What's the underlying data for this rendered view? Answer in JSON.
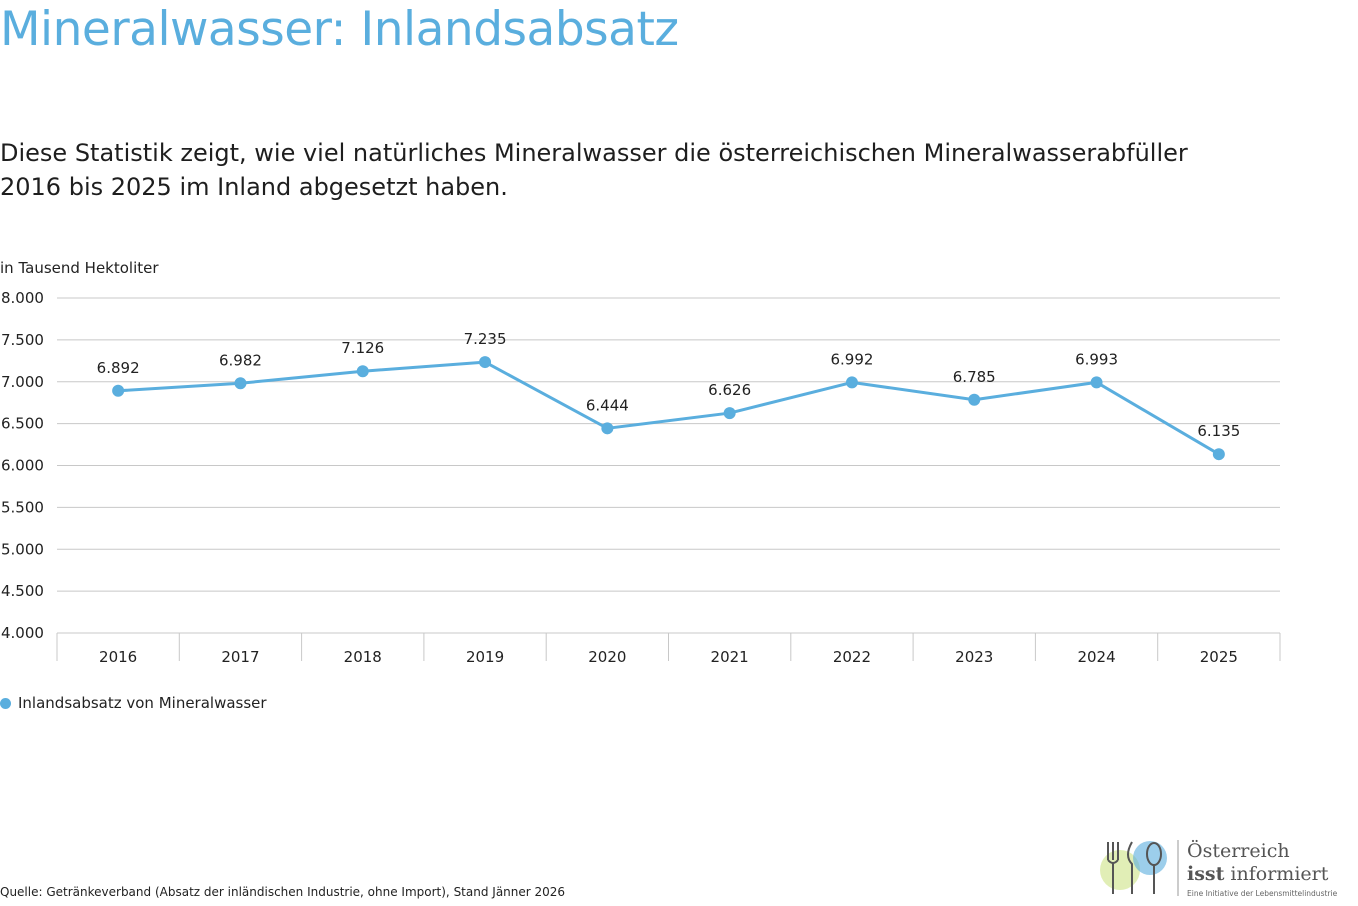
{
  "title": "Mineralwasser: Inlandsabsatz",
  "subtitle": "Diese Statistik zeigt, wie viel natürliches Mineralwasser die österreichischen Mineralwasserabfüller 2016 bis 2025 im Inland abgesetzt haben.",
  "source": "Quelle: Getränkeverband (Absatz der inländischen Industrie, ohne Import),  Stand Jänner 2026",
  "logo": {
    "line1": "Österreich",
    "line2_bold": "isst",
    "line2_rest": " informiert",
    "line3": "Eine Initiative der Lebensmittelindustrie"
  },
  "colors": {
    "accent": "#5aaede",
    "grid": "#c8c8c8"
  },
  "chart_data": {
    "type": "line",
    "ylabel": "in Tausend Hektoliter",
    "categories": [
      "2016",
      "2017",
      "2018",
      "2019",
      "2020",
      "2021",
      "2022",
      "2023",
      "2024",
      "2025"
    ],
    "series": [
      {
        "name": "Inlandsabsatz von Mineralwasser",
        "values": [
          6892,
          6982,
          7126,
          7235,
          6444,
          6626,
          6992,
          6785,
          6993,
          6135
        ],
        "labels": [
          "6.892",
          "6.982",
          "7.126",
          "7.235",
          "6.444",
          "6.626",
          "6.992",
          "6.785",
          "6.993",
          "6.135"
        ]
      }
    ],
    "ylim": [
      4000,
      8000
    ],
    "yticks": [
      4000,
      4500,
      5000,
      5500,
      6000,
      6500,
      7000,
      7500,
      8000
    ],
    "ytick_labels": [
      "4.000",
      "4.500",
      "5.000",
      "5.500",
      "6.000",
      "6.500",
      "7.000",
      "7.500",
      "8.000"
    ],
    "grid": true,
    "legend": "bottom-left"
  }
}
